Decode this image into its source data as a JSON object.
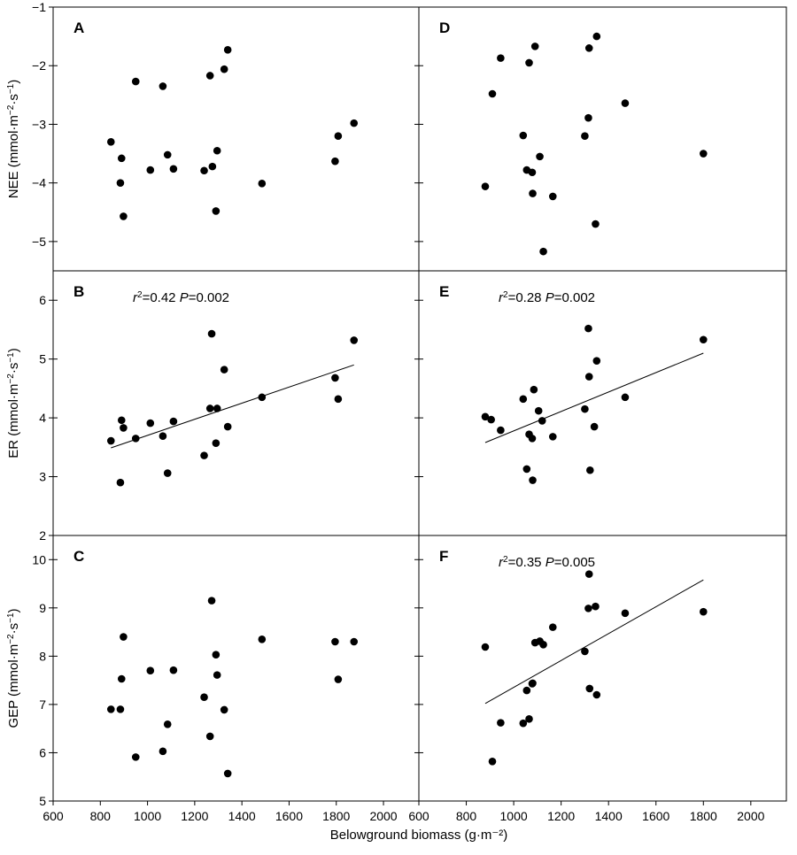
{
  "figure": {
    "xlabel": "Belowground biomass (g·m⁻²)"
  },
  "chart_data": [
    {
      "type": "scatter",
      "panel": "A",
      "xlabel": "Belowground biomass (g·m⁻²)",
      "ylabel": "NEE (mmol·m⁻²·s⁻¹)",
      "xlim": [
        600,
        2150
      ],
      "ylim": [
        -5.5,
        -1
      ],
      "xticks": [],
      "yticks": [
        -1,
        -2,
        -3,
        -4,
        -5
      ],
      "points": [
        [
          845,
          -3.3
        ],
        [
          890,
          -3.58
        ],
        [
          885,
          -4.0
        ],
        [
          898,
          -4.57
        ],
        [
          950,
          -2.27
        ],
        [
          1012,
          -3.78
        ],
        [
          1065,
          -2.35
        ],
        [
          1085,
          -3.52
        ],
        [
          1110,
          -3.76
        ],
        [
          1240,
          -3.79
        ],
        [
          1265,
          -2.17
        ],
        [
          1275,
          -3.72
        ],
        [
          1290,
          -4.48
        ],
        [
          1295,
          -3.45
        ],
        [
          1325,
          -2.06
        ],
        [
          1340,
          -1.73
        ],
        [
          1485,
          -4.01
        ],
        [
          1795,
          -3.63
        ],
        [
          1808,
          -3.2
        ],
        [
          1875,
          -2.98
        ]
      ],
      "stats": null,
      "fit": null
    },
    {
      "type": "scatter",
      "panel": "D",
      "xlabel": "Belowground biomass (g·m⁻²)",
      "ylabel": "",
      "xlim": [
        600,
        2150
      ],
      "ylim": [
        -5.5,
        -1
      ],
      "xticks": [],
      "yticks": [],
      "points": [
        [
          880,
          -4.06
        ],
        [
          910,
          -2.48
        ],
        [
          945,
          -1.87
        ],
        [
          1040,
          -3.19
        ],
        [
          1055,
          -3.78
        ],
        [
          1065,
          -1.95
        ],
        [
          1078,
          -3.82
        ],
        [
          1080,
          -4.18
        ],
        [
          1090,
          -1.67
        ],
        [
          1110,
          -3.55
        ],
        [
          1125,
          -5.17
        ],
        [
          1165,
          -4.23
        ],
        [
          1300,
          -3.2
        ],
        [
          1315,
          -2.89
        ],
        [
          1318,
          -1.7
        ],
        [
          1345,
          -4.7
        ],
        [
          1350,
          -1.5
        ],
        [
          1470,
          -2.64
        ],
        [
          1800,
          -3.5
        ]
      ],
      "stats": null,
      "fit": null
    },
    {
      "type": "scatter",
      "panel": "B",
      "xlabel": "Belowground biomass (g·m⁻²)",
      "ylabel": "ER (mmol·m⁻²·s⁻¹)",
      "xlim": [
        600,
        2150
      ],
      "ylim": [
        2,
        6.5
      ],
      "xticks": [],
      "yticks": [
        2,
        3,
        4,
        5,
        6
      ],
      "points": [
        [
          845,
          3.61
        ],
        [
          885,
          2.9
        ],
        [
          890,
          3.96
        ],
        [
          898,
          3.83
        ],
        [
          950,
          3.65
        ],
        [
          1012,
          3.91
        ],
        [
          1065,
          3.69
        ],
        [
          1085,
          3.06
        ],
        [
          1110,
          3.94
        ],
        [
          1240,
          3.36
        ],
        [
          1265,
          4.16
        ],
        [
          1272,
          5.43
        ],
        [
          1290,
          3.57
        ],
        [
          1295,
          4.16
        ],
        [
          1325,
          4.82
        ],
        [
          1340,
          3.85
        ],
        [
          1485,
          4.35
        ],
        [
          1795,
          4.68
        ],
        [
          1808,
          4.32
        ],
        [
          1875,
          5.32
        ]
      ],
      "stats": {
        "r2": "0.42",
        "p": "0.002"
      },
      "fit": {
        "x": [
          845,
          1875
        ],
        "y": [
          3.49,
          4.9
        ]
      }
    },
    {
      "type": "scatter",
      "panel": "E",
      "xlabel": "Belowground biomass (g·m⁻²)",
      "ylabel": "",
      "xlim": [
        600,
        2150
      ],
      "ylim": [
        2,
        6.5
      ],
      "xticks": [],
      "yticks": [],
      "points": [
        [
          880,
          4.02
        ],
        [
          905,
          3.97
        ],
        [
          945,
          3.79
        ],
        [
          1040,
          4.32
        ],
        [
          1055,
          3.13
        ],
        [
          1065,
          3.72
        ],
        [
          1078,
          3.65
        ],
        [
          1080,
          2.94
        ],
        [
          1085,
          4.48
        ],
        [
          1105,
          4.12
        ],
        [
          1120,
          3.95
        ],
        [
          1165,
          3.68
        ],
        [
          1300,
          4.15
        ],
        [
          1315,
          5.52
        ],
        [
          1318,
          4.7
        ],
        [
          1322,
          3.11
        ],
        [
          1340,
          3.85
        ],
        [
          1350,
          4.97
        ],
        [
          1470,
          4.35
        ],
        [
          1800,
          5.33
        ]
      ],
      "stats": {
        "r2": "0.28",
        "p": "0.002"
      },
      "fit": {
        "x": [
          880,
          1800
        ],
        "y": [
          3.58,
          5.1
        ]
      }
    },
    {
      "type": "scatter",
      "panel": "C",
      "xlabel": "Belowground biomass (g·m⁻²)",
      "ylabel": "GEP (mmol·m⁻²·s⁻¹)",
      "xlim": [
        600,
        2150
      ],
      "ylim": [
        5,
        10.5
      ],
      "xticks": [
        600,
        800,
        1000,
        1200,
        1400,
        1600,
        1800,
        2000
      ],
      "yticks": [
        5,
        6,
        7,
        8,
        9,
        10
      ],
      "points": [
        [
          845,
          6.9
        ],
        [
          885,
          6.9
        ],
        [
          890,
          7.53
        ],
        [
          898,
          8.4
        ],
        [
          950,
          5.91
        ],
        [
          1012,
          7.7
        ],
        [
          1065,
          6.03
        ],
        [
          1085,
          6.59
        ],
        [
          1110,
          7.71
        ],
        [
          1240,
          7.15
        ],
        [
          1265,
          6.34
        ],
        [
          1272,
          9.15
        ],
        [
          1290,
          8.03
        ],
        [
          1295,
          7.61
        ],
        [
          1325,
          6.89
        ],
        [
          1340,
          5.57
        ],
        [
          1485,
          8.35
        ],
        [
          1795,
          8.3
        ],
        [
          1808,
          7.52
        ],
        [
          1875,
          8.3
        ]
      ],
      "stats": null,
      "fit": null
    },
    {
      "type": "scatter",
      "panel": "F",
      "xlabel": "Belowground biomass (g·m⁻²)",
      "ylabel": "",
      "xlim": [
        600,
        2150
      ],
      "ylim": [
        5,
        10.5
      ],
      "xticks": [
        600,
        800,
        1000,
        1200,
        1400,
        1600,
        1800,
        2000
      ],
      "yticks": [],
      "points": [
        [
          880,
          8.19
        ],
        [
          910,
          5.82
        ],
        [
          945,
          6.62
        ],
        [
          1040,
          6.61
        ],
        [
          1055,
          7.29
        ],
        [
          1065,
          6.7
        ],
        [
          1078,
          7.43
        ],
        [
          1080,
          7.44
        ],
        [
          1090,
          8.28
        ],
        [
          1110,
          8.31
        ],
        [
          1125,
          8.24
        ],
        [
          1165,
          8.6
        ],
        [
          1300,
          8.1
        ],
        [
          1315,
          8.99
        ],
        [
          1318,
          9.7
        ],
        [
          1320,
          7.33
        ],
        [
          1345,
          9.03
        ],
        [
          1350,
          7.2
        ],
        [
          1470,
          8.89
        ],
        [
          1800,
          8.92
        ]
      ],
      "stats": {
        "r2": "0.35",
        "p": "0.005"
      },
      "fit": {
        "x": [
          880,
          1800
        ],
        "y": [
          7.02,
          9.58
        ]
      }
    }
  ]
}
